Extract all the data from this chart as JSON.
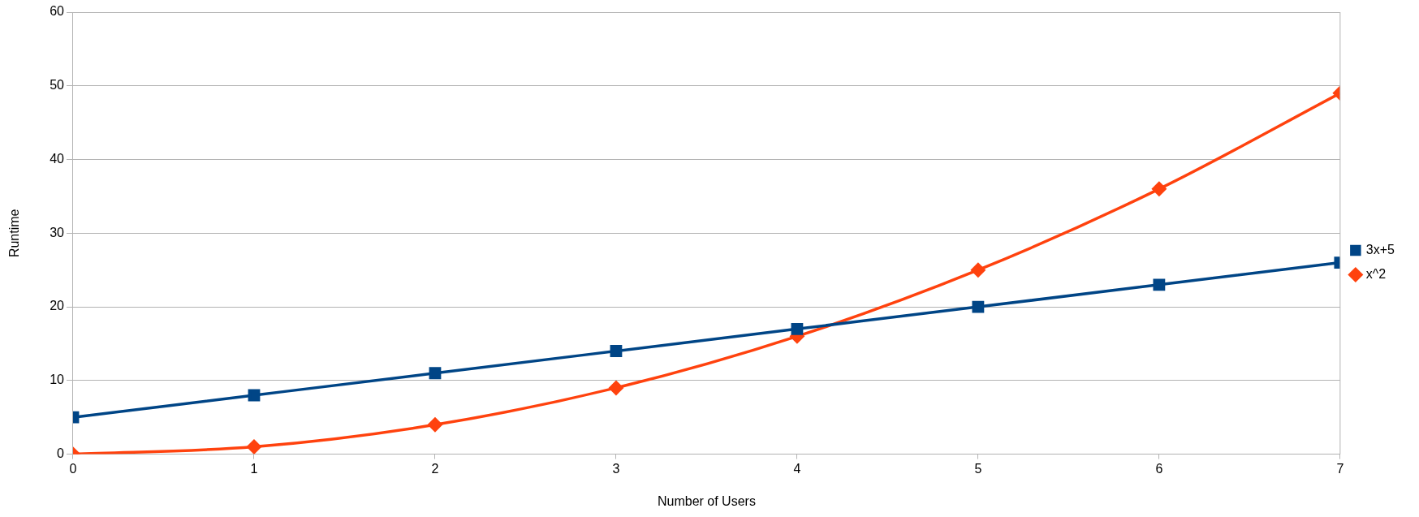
{
  "chart_data": {
    "type": "line",
    "xlabel": "Number of Users",
    "ylabel": "Runtime",
    "x": [
      0,
      1,
      2,
      3,
      4,
      5,
      6,
      7
    ],
    "series": [
      {
        "name": "3x+5",
        "color": "#004586",
        "marker": "square",
        "values": [
          5,
          8,
          11,
          14,
          17,
          20,
          23,
          26
        ]
      },
      {
        "name": "x^2",
        "color": "#ff420e",
        "marker": "diamond",
        "values": [
          0,
          1,
          4,
          9,
          16,
          25,
          36,
          49
        ]
      }
    ],
    "xlim": [
      0,
      7
    ],
    "xticks": [
      0,
      1,
      2,
      3,
      4,
      5,
      6,
      7
    ],
    "ylim": [
      0,
      60
    ],
    "yticks": [
      0,
      10,
      20,
      30,
      40,
      50,
      60
    ],
    "grid": "y",
    "legend": "right",
    "line_style": "solid"
  }
}
